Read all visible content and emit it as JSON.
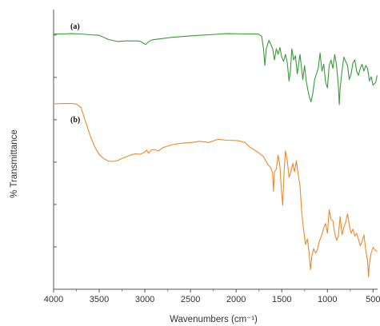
{
  "chart_data": {
    "type": "line",
    "xlabel": "Wavenumbers (cm⁻¹)",
    "ylabel": "% Transmittance",
    "xlim": [
      4000,
      450
    ],
    "x_reversed": true,
    "x_ticks": [
      "4000",
      "3500",
      "3000",
      "2500",
      "2000",
      "1500",
      "1000",
      "500"
    ],
    "x_tick_values": [
      4000,
      3500,
      3000,
      2500,
      2000,
      1500,
      1000,
      500
    ],
    "ylim": [
      0,
      100
    ],
    "y_tick_labels_shown": false,
    "legend": "none",
    "series": [
      {
        "name": "(a)",
        "color": "#3a9a3a",
        "points": [
          [
            4000,
            91.3
          ],
          [
            3900,
            91.3
          ],
          [
            3800,
            91.4
          ],
          [
            3700,
            91.3
          ],
          [
            3600,
            91.0
          ],
          [
            3500,
            90.8
          ],
          [
            3400,
            89.3
          ],
          [
            3300,
            88.6
          ],
          [
            3200,
            88.8
          ],
          [
            3100,
            88.8
          ],
          [
            3050,
            88.7
          ],
          [
            2990,
            87.5
          ],
          [
            2960,
            88.5
          ],
          [
            2920,
            89.2
          ],
          [
            2850,
            89.5
          ],
          [
            2700,
            90.1
          ],
          [
            2500,
            90.6
          ],
          [
            2300,
            91.0
          ],
          [
            2100,
            91.4
          ],
          [
            1900,
            91.3
          ],
          [
            1760,
            91.3
          ],
          [
            1720,
            90.5
          ],
          [
            1700,
            86.0
          ],
          [
            1685,
            80.0
          ],
          [
            1670,
            86.0
          ],
          [
            1640,
            89.0
          ],
          [
            1600,
            86.0
          ],
          [
            1580,
            82.0
          ],
          [
            1560,
            86.0
          ],
          [
            1540,
            84.0
          ],
          [
            1520,
            86.5
          ],
          [
            1500,
            83.0
          ],
          [
            1480,
            81.5
          ],
          [
            1460,
            84.0
          ],
          [
            1440,
            81.0
          ],
          [
            1420,
            74.5
          ],
          [
            1405,
            78.0
          ],
          [
            1390,
            86.0
          ],
          [
            1370,
            82.0
          ],
          [
            1350,
            83.5
          ],
          [
            1330,
            77.0
          ],
          [
            1300,
            84.0
          ],
          [
            1270,
            75.0
          ],
          [
            1250,
            80.0
          ],
          [
            1230,
            74.0
          ],
          [
            1200,
            69.0
          ],
          [
            1180,
            67.0
          ],
          [
            1160,
            70.0
          ],
          [
            1140,
            75.0
          ],
          [
            1100,
            79.0
          ],
          [
            1080,
            84.5
          ],
          [
            1060,
            78.0
          ],
          [
            1040,
            80.5
          ],
          [
            1020,
            74.0
          ],
          [
            1000,
            72.0
          ],
          [
            980,
            80.0
          ],
          [
            960,
            82.0
          ],
          [
            940,
            79.0
          ],
          [
            920,
            84.0
          ],
          [
            900,
            80.0
          ],
          [
            880,
            73.0
          ],
          [
            870,
            66.0
          ],
          [
            860,
            72.0
          ],
          [
            840,
            78.0
          ],
          [
            820,
            83.0
          ],
          [
            800,
            81.5
          ],
          [
            780,
            80.0
          ],
          [
            760,
            75.0
          ],
          [
            740,
            77.0
          ],
          [
            720,
            81.0
          ],
          [
            700,
            82.0
          ],
          [
            680,
            78.0
          ],
          [
            660,
            76.5
          ],
          [
            640,
            79.0
          ],
          [
            620,
            80.5
          ],
          [
            600,
            78.0
          ],
          [
            580,
            80.0
          ],
          [
            560,
            79.0
          ],
          [
            540,
            74.5
          ],
          [
            520,
            76.0
          ],
          [
            500,
            73.0
          ],
          [
            470,
            74.0
          ],
          [
            455,
            76.5
          ]
        ]
      },
      {
        "name": "(b)",
        "color": "#ea8a2a",
        "points": [
          [
            4000,
            66.3
          ],
          [
            3900,
            66.4
          ],
          [
            3800,
            66.4
          ],
          [
            3750,
            66.2
          ],
          [
            3700,
            65.0
          ],
          [
            3650,
            60.0
          ],
          [
            3600,
            55.0
          ],
          [
            3550,
            51.0
          ],
          [
            3500,
            48.2
          ],
          [
            3450,
            46.7
          ],
          [
            3400,
            45.8
          ],
          [
            3350,
            45.7
          ],
          [
            3300,
            46.0
          ],
          [
            3250,
            46.8
          ],
          [
            3200,
            47.4
          ],
          [
            3150,
            48.1
          ],
          [
            3100,
            48.4
          ],
          [
            3050,
            48.3
          ],
          [
            3000,
            49.1
          ],
          [
            2980,
            49.8
          ],
          [
            2960,
            48.6
          ],
          [
            2930,
            49.8
          ],
          [
            2900,
            50.0
          ],
          [
            2850,
            49.5
          ],
          [
            2800,
            50.7
          ],
          [
            2700,
            51.7
          ],
          [
            2600,
            52.2
          ],
          [
            2500,
            52.4
          ],
          [
            2400,
            52.9
          ],
          [
            2300,
            52.5
          ],
          [
            2200,
            53.6
          ],
          [
            2100,
            53.3
          ],
          [
            2000,
            53.2
          ],
          [
            1950,
            52.9
          ],
          [
            1900,
            52.4
          ],
          [
            1850,
            50.8
          ],
          [
            1800,
            49.8
          ],
          [
            1750,
            48.7
          ],
          [
            1700,
            47.4
          ],
          [
            1650,
            44.5
          ],
          [
            1620,
            43.5
          ],
          [
            1600,
            41.5
          ],
          [
            1590,
            35.0
          ],
          [
            1580,
            42.0
          ],
          [
            1560,
            43.0
          ],
          [
            1540,
            48.0
          ],
          [
            1520,
            44.0
          ],
          [
            1505,
            36.0
          ],
          [
            1490,
            30.0
          ],
          [
            1475,
            42.0
          ],
          [
            1460,
            49.5
          ],
          [
            1440,
            46.0
          ],
          [
            1420,
            40.0
          ],
          [
            1400,
            42.0
          ],
          [
            1380,
            45.0
          ],
          [
            1360,
            42.0
          ],
          [
            1340,
            46.0
          ],
          [
            1320,
            41.0
          ],
          [
            1300,
            37.0
          ],
          [
            1280,
            27.0
          ],
          [
            1260,
            21.0
          ],
          [
            1240,
            16.0
          ],
          [
            1220,
            18.0
          ],
          [
            1200,
            13.0
          ],
          [
            1185,
            7.0
          ],
          [
            1170,
            12.0
          ],
          [
            1150,
            14.5
          ],
          [
            1130,
            13.0
          ],
          [
            1110,
            14.0
          ],
          [
            1090,
            17.0
          ],
          [
            1060,
            19.5
          ],
          [
            1040,
            22.0
          ],
          [
            1020,
            23.5
          ],
          [
            1000,
            20.0
          ],
          [
            980,
            28.5
          ],
          [
            960,
            25.0
          ],
          [
            940,
            24.5
          ],
          [
            920,
            20.0
          ],
          [
            900,
            17.5
          ],
          [
            880,
            19.0
          ],
          [
            860,
            26.0
          ],
          [
            840,
            19.5
          ],
          [
            820,
            22.0
          ],
          [
            800,
            24.0
          ],
          [
            780,
            27.0
          ],
          [
            760,
            23.0
          ],
          [
            740,
            20.0
          ],
          [
            720,
            21.5
          ],
          [
            700,
            19.0
          ],
          [
            680,
            20.0
          ],
          [
            660,
            18.0
          ],
          [
            640,
            15.5
          ],
          [
            620,
            17.0
          ],
          [
            600,
            19.5
          ],
          [
            580,
            14.0
          ],
          [
            560,
            10.0
          ],
          [
            550,
            4.5
          ],
          [
            540,
            9.0
          ],
          [
            520,
            13.0
          ],
          [
            500,
            15.0
          ],
          [
            480,
            14.0
          ],
          [
            455,
            13.5
          ]
        ]
      }
    ]
  },
  "figure": {
    "panel_labels": [
      "(a)",
      "(b)"
    ]
  }
}
